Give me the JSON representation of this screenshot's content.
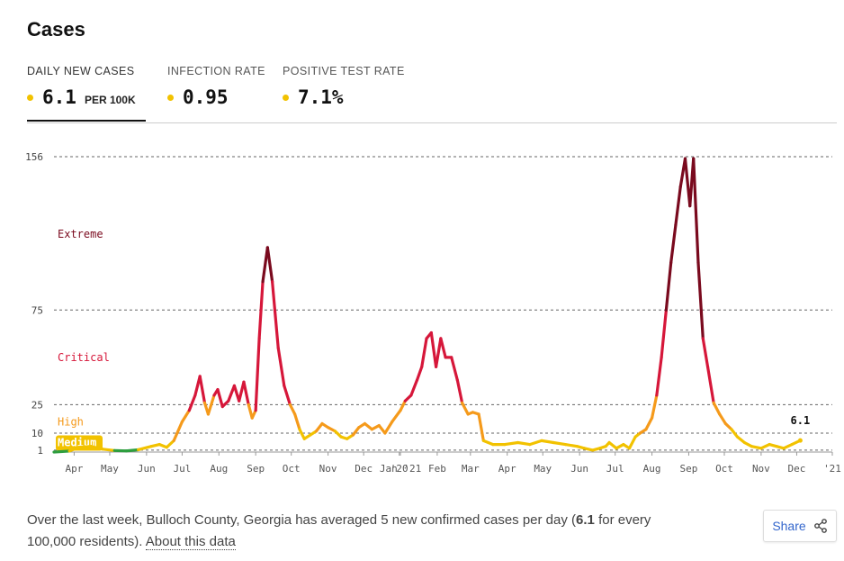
{
  "header": {
    "title": "Cases"
  },
  "tabs": [
    {
      "label": "DAILY NEW CASES",
      "value": "6.1",
      "unit": "PER 100K",
      "active": true
    },
    {
      "label": "INFECTION RATE",
      "value": "0.95",
      "unit": "",
      "active": false
    },
    {
      "label": "POSITIVE TEST RATE",
      "value": "7.1%",
      "unit": "",
      "active": false
    }
  ],
  "colors": {
    "low": "#2e9e3f",
    "medium": "#f2c200",
    "high": "#f59a1b",
    "critical": "#d6173a",
    "extreme": "#7a0a1e",
    "grid": "#666666",
    "axis_text": "#555555"
  },
  "chart_data": {
    "type": "line",
    "title": "",
    "xlabel": "",
    "ylabel": "",
    "ylim": [
      0,
      156
    ],
    "yticks": [
      1,
      10,
      25,
      75,
      156
    ],
    "zone_labels": [
      {
        "name": "Extreme",
        "y": 115
      },
      {
        "name": "Critical",
        "y": 50
      },
      {
        "name": "High",
        "y": 16
      },
      {
        "name": "Medium",
        "y": 5
      }
    ],
    "zone_thresholds": [
      {
        "max": 1,
        "level": "low"
      },
      {
        "max": 10,
        "level": "medium"
      },
      {
        "max": 25,
        "level": "high"
      },
      {
        "max": 75,
        "level": "critical"
      },
      {
        "max": 156,
        "level": "extreme"
      }
    ],
    "xticks": [
      {
        "label": "Apr",
        "x": "2020-04-01"
      },
      {
        "label": "May",
        "x": "2020-05-01"
      },
      {
        "label": "Jun",
        "x": "2020-06-01"
      },
      {
        "label": "Jul",
        "x": "2020-07-01"
      },
      {
        "label": "Aug",
        "x": "2020-08-01"
      },
      {
        "label": "Sep",
        "x": "2020-09-01"
      },
      {
        "label": "Oct",
        "x": "2020-10-01"
      },
      {
        "label": "Nov",
        "x": "2020-11-01"
      },
      {
        "label": "Dec",
        "x": "2020-12-01"
      },
      {
        "label": "'20",
        "x": "2020-12-31"
      },
      {
        "label": "Jan '21",
        "x": "2021-01-01"
      },
      {
        "label": "Feb",
        "x": "2021-02-01"
      },
      {
        "label": "Mar",
        "x": "2021-03-01"
      },
      {
        "label": "Apr",
        "x": "2021-04-01"
      },
      {
        "label": "May",
        "x": "2021-05-01"
      },
      {
        "label": "Jun",
        "x": "2021-06-01"
      },
      {
        "label": "Jul",
        "x": "2021-07-01"
      },
      {
        "label": "Aug",
        "x": "2021-08-01"
      },
      {
        "label": "Sep",
        "x": "2021-09-01"
      },
      {
        "label": "Oct",
        "x": "2021-10-01"
      },
      {
        "label": "Nov",
        "x": "2021-11-01"
      },
      {
        "label": "Dec",
        "x": "2021-12-01"
      },
      {
        "label": "'21",
        "x": "2021-12-31"
      }
    ],
    "xrange": [
      "2020-03-15",
      "2021-12-31"
    ],
    "series": [
      {
        "end_label": "6.1",
        "points": [
          [
            "2020-03-15",
            0
          ],
          [
            "2020-03-28",
            0.5
          ],
          [
            "2020-04-05",
            2.5
          ],
          [
            "2020-04-15",
            3
          ],
          [
            "2020-04-25",
            1.5
          ],
          [
            "2020-05-05",
            0.8
          ],
          [
            "2020-05-15",
            0.6
          ],
          [
            "2020-05-25",
            1.2
          ],
          [
            "2020-06-05",
            3
          ],
          [
            "2020-06-12",
            4
          ],
          [
            "2020-06-18",
            2.5
          ],
          [
            "2020-06-24",
            6
          ],
          [
            "2020-07-01",
            16
          ],
          [
            "2020-07-07",
            22
          ],
          [
            "2020-07-12",
            30
          ],
          [
            "2020-07-16",
            40
          ],
          [
            "2020-07-20",
            26
          ],
          [
            "2020-07-23",
            20
          ],
          [
            "2020-07-28",
            30
          ],
          [
            "2020-07-31",
            33
          ],
          [
            "2020-08-04",
            24
          ],
          [
            "2020-08-09",
            27
          ],
          [
            "2020-08-14",
            35
          ],
          [
            "2020-08-18",
            27
          ],
          [
            "2020-08-22",
            37
          ],
          [
            "2020-08-26",
            25
          ],
          [
            "2020-08-29",
            18
          ],
          [
            "2020-09-01",
            22
          ],
          [
            "2020-09-04",
            60
          ],
          [
            "2020-09-07",
            90
          ],
          [
            "2020-09-11",
            108
          ],
          [
            "2020-09-15",
            90
          ],
          [
            "2020-09-20",
            55
          ],
          [
            "2020-09-25",
            35
          ],
          [
            "2020-09-30",
            25
          ],
          [
            "2020-10-04",
            20
          ],
          [
            "2020-10-08",
            12
          ],
          [
            "2020-10-12",
            7
          ],
          [
            "2020-10-17",
            9
          ],
          [
            "2020-10-22",
            11
          ],
          [
            "2020-10-27",
            15
          ],
          [
            "2020-11-01",
            13
          ],
          [
            "2020-11-07",
            11
          ],
          [
            "2020-11-12",
            8
          ],
          [
            "2020-11-17",
            7
          ],
          [
            "2020-11-22",
            9
          ],
          [
            "2020-11-27",
            13
          ],
          [
            "2020-12-02",
            15
          ],
          [
            "2020-12-08",
            12
          ],
          [
            "2020-12-14",
            14
          ],
          [
            "2020-12-19",
            10
          ],
          [
            "2020-12-25",
            16
          ],
          [
            "2021-01-01",
            22
          ],
          [
            "2021-01-05",
            27
          ],
          [
            "2021-01-10",
            30
          ],
          [
            "2021-01-15",
            38
          ],
          [
            "2021-01-19",
            45
          ],
          [
            "2021-01-23",
            60
          ],
          [
            "2021-01-27",
            63
          ],
          [
            "2021-01-31",
            45
          ],
          [
            "2021-02-04",
            60
          ],
          [
            "2021-02-08",
            50
          ],
          [
            "2021-02-13",
            50
          ],
          [
            "2021-02-18",
            38
          ],
          [
            "2021-02-22",
            26
          ],
          [
            "2021-02-27",
            20
          ],
          [
            "2021-03-03",
            21
          ],
          [
            "2021-03-08",
            20
          ],
          [
            "2021-03-12",
            6
          ],
          [
            "2021-03-20",
            4
          ],
          [
            "2021-03-30",
            4
          ],
          [
            "2021-04-10",
            5
          ],
          [
            "2021-04-20",
            4
          ],
          [
            "2021-04-30",
            6
          ],
          [
            "2021-05-10",
            5
          ],
          [
            "2021-05-20",
            4
          ],
          [
            "2021-05-30",
            3
          ],
          [
            "2021-06-05",
            2
          ],
          [
            "2021-06-12",
            1
          ],
          [
            "2021-06-18",
            2
          ],
          [
            "2021-06-23",
            3
          ],
          [
            "2021-06-26",
            5
          ],
          [
            "2021-07-02",
            2
          ],
          [
            "2021-07-08",
            4
          ],
          [
            "2021-07-13",
            2
          ],
          [
            "2021-07-18",
            8
          ],
          [
            "2021-07-22",
            10
          ],
          [
            "2021-07-27",
            12
          ],
          [
            "2021-08-01",
            18
          ],
          [
            "2021-08-05",
            30
          ],
          [
            "2021-08-09",
            50
          ],
          [
            "2021-08-13",
            75
          ],
          [
            "2021-08-17",
            100
          ],
          [
            "2021-08-21",
            120
          ],
          [
            "2021-08-25",
            140
          ],
          [
            "2021-08-29",
            155
          ],
          [
            "2021-09-02",
            130
          ],
          [
            "2021-09-05",
            155
          ],
          [
            "2021-09-09",
            100
          ],
          [
            "2021-09-13",
            60
          ],
          [
            "2021-09-17",
            45
          ],
          [
            "2021-09-22",
            26
          ],
          [
            "2021-09-27",
            20
          ],
          [
            "2021-10-02",
            15
          ],
          [
            "2021-10-07",
            12
          ],
          [
            "2021-10-12",
            8
          ],
          [
            "2021-10-18",
            5
          ],
          [
            "2021-10-24",
            3
          ],
          [
            "2021-11-01",
            2
          ],
          [
            "2021-11-08",
            4
          ],
          [
            "2021-11-14",
            3
          ],
          [
            "2021-11-20",
            2
          ],
          [
            "2021-11-27",
            4
          ],
          [
            "2021-12-04",
            6.1
          ]
        ]
      }
    ]
  },
  "footer": {
    "text": "Over the last week, Bulloch County, Georgia has averaged 5 new confirmed cases per day (",
    "bold": "6.1",
    "text2": " for every 100,000 residents). ",
    "link": "About this data"
  },
  "share": {
    "label": "Share",
    "icon": "share-icon"
  }
}
